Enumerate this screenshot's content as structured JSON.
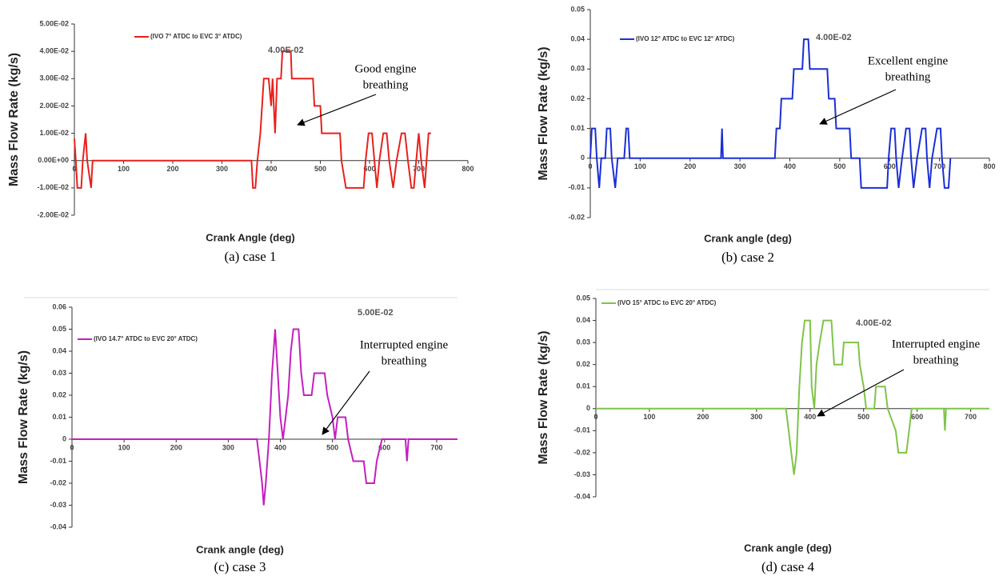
{
  "chart_data": [
    {
      "type": "line",
      "caption": "(a) case 1",
      "x_label": "Crank Angle (deg)",
      "y_label": "Mass Flow Rate (kg/s)",
      "peak_label": "4.00E-02",
      "annotation": [
        "Good engine",
        "breathing"
      ],
      "xlim": [
        0,
        800
      ],
      "xticks": [
        0,
        100,
        200,
        300,
        400,
        500,
        600,
        700,
        800
      ],
      "ylim": [
        -0.02,
        0.05
      ],
      "yticks": [
        {
          "value": -0.02,
          "label": "-2.00E-02"
        },
        {
          "value": -0.01,
          "label": "-1.00E-02"
        },
        {
          "value": 0,
          "label": "0.00E+00"
        },
        {
          "value": 0.01,
          "label": "1.00E-02"
        },
        {
          "value": 0.02,
          "label": "2.00E-02"
        },
        {
          "value": 0.03,
          "label": "3.00E-02"
        },
        {
          "value": 0.04,
          "label": "4.00E-02"
        },
        {
          "value": 0.05,
          "label": "5.00E-02"
        }
      ],
      "x": [
        0,
        3,
        6,
        14,
        17,
        23,
        26,
        34,
        37,
        360,
        363,
        368,
        372,
        378,
        385,
        395,
        400,
        403,
        408,
        412,
        420,
        423,
        440,
        442,
        485,
        488,
        500,
        503,
        540,
        543,
        552,
        588,
        592,
        598,
        605,
        610,
        615,
        620,
        628,
        635,
        640,
        648,
        655,
        665,
        672,
        678,
        685,
        690,
        695,
        700,
        705,
        712,
        716,
        720,
        725
      ],
      "series": [
        {
          "name": "(IVO 7° ATDC to EVC 3° ATDC)",
          "color": "#e8211c",
          "values": [
            0.008,
            0,
            -0.01,
            -0.01,
            0,
            0.01,
            0,
            -0.01,
            0,
            0,
            -0.01,
            -0.01,
            0,
            0.01,
            0.03,
            0.03,
            0.02,
            0.03,
            0.01,
            0.03,
            0.03,
            0.04,
            0.04,
            0.03,
            0.03,
            0.02,
            0.02,
            0.01,
            0.01,
            0,
            -0.01,
            -0.01,
            0,
            0.01,
            0.01,
            0,
            -0.01,
            0,
            0.01,
            0.01,
            0,
            -0.01,
            0,
            0.01,
            0.01,
            0,
            -0.01,
            -0.01,
            0,
            0.01,
            0,
            -0.01,
            0,
            0.01,
            0.01
          ]
        }
      ]
    },
    {
      "type": "line",
      "caption": "(b) case 2",
      "x_label": "Crank angle (deg)",
      "y_label": "Mass Flow Rate (kg/s)",
      "peak_label": "4.00E-02",
      "annotation": [
        "Excellent engine",
        "breathing"
      ],
      "xlim": [
        0,
        800
      ],
      "xticks": [
        0,
        100,
        200,
        300,
        400,
        500,
        600,
        700,
        800
      ],
      "ylim": [
        -0.02,
        0.05
      ],
      "yticks": [
        -0.02,
        -0.01,
        0,
        0.01,
        0.02,
        0.03,
        0.04,
        0.05
      ],
      "x": [
        0,
        3,
        10,
        13,
        18,
        22,
        30,
        33,
        40,
        43,
        50,
        55,
        68,
        72,
        76,
        79,
        262,
        264,
        266,
        370,
        373,
        380,
        383,
        405,
        408,
        425,
        428,
        437,
        440,
        475,
        478,
        490,
        493,
        520,
        523,
        540,
        543,
        595,
        598,
        603,
        610,
        613,
        618,
        625,
        633,
        640,
        643,
        648,
        655,
        665,
        672,
        675,
        680,
        685,
        695,
        702,
        705,
        710,
        718,
        722
      ],
      "series": [
        {
          "name": "(IVO 12° ATDC to EVC 12° ATDC)",
          "color": "#1a2fd6",
          "values": [
            0,
            0.01,
            0.01,
            0,
            -0.01,
            0,
            0,
            0.01,
            0.01,
            0,
            -0.01,
            0,
            0,
            0.01,
            0.01,
            0,
            0,
            0.01,
            0,
            0,
            0.01,
            0.01,
            0.02,
            0.02,
            0.03,
            0.03,
            0.04,
            0.04,
            0.03,
            0.03,
            0.02,
            0.02,
            0.01,
            0.01,
            0,
            0,
            -0.01,
            -0.01,
            0,
            0.01,
            0.01,
            0,
            -0.01,
            0,
            0.01,
            0.01,
            0,
            -0.01,
            0,
            0.01,
            0.01,
            0,
            -0.01,
            0,
            0.01,
            0.01,
            0,
            -0.01,
            -0.01,
            0
          ]
        }
      ]
    },
    {
      "type": "line",
      "caption": "(c) case 3",
      "x_label": "Crank angle (deg)",
      "y_label": "Mass Flow Rate (kg/s)",
      "peak_label": "5.00E-02",
      "annotation": [
        "Interrupted engine",
        "breathing"
      ],
      "xlim": [
        0,
        740
      ],
      "xticks": [
        0,
        100,
        200,
        300,
        400,
        500,
        600,
        700
      ],
      "ylim": [
        -0.04,
        0.06
      ],
      "yticks": [
        -0.04,
        -0.03,
        -0.02,
        -0.01,
        0,
        0.01,
        0.02,
        0.03,
        0.04,
        0.05,
        0.06
      ],
      "x": [
        0,
        355,
        360,
        365,
        368,
        372,
        378,
        384,
        390,
        395,
        400,
        405,
        410,
        415,
        420,
        425,
        435,
        440,
        445,
        460,
        465,
        485,
        490,
        500,
        505,
        510,
        525,
        530,
        540,
        560,
        565,
        580,
        585,
        595,
        640,
        643,
        646,
        740
      ],
      "series": [
        {
          "name": "(IVO 14.7° ATDC to EVC 20° ATDC)",
          "color": "#c41fbf",
          "values": [
            0,
            0,
            -0.01,
            -0.02,
            -0.03,
            -0.02,
            0,
            0.03,
            0.05,
            0.03,
            0.01,
            0,
            0.01,
            0.02,
            0.04,
            0.05,
            0.05,
            0.03,
            0.02,
            0.02,
            0.03,
            0.03,
            0.02,
            0.01,
            0,
            0.01,
            0.01,
            0,
            -0.01,
            -0.01,
            -0.02,
            -0.02,
            -0.01,
            0,
            0,
            -0.01,
            0,
            0
          ]
        }
      ]
    },
    {
      "type": "line",
      "caption": "(d) case 4",
      "x_label": "Crank angle (deg)",
      "y_label": "Mass Flow Rate (kg/s)",
      "peak_label": "4.00E-02",
      "annotation": [
        "Interrupted engine",
        "breathing"
      ],
      "xlim": [
        0,
        735
      ],
      "xticks": [
        0,
        100,
        200,
        300,
        400,
        500,
        600,
        700
      ],
      "ylim": [
        -0.04,
        0.05
      ],
      "yticks": [
        -0.04,
        -0.03,
        -0.02,
        -0.01,
        0,
        0.01,
        0.02,
        0.03,
        0.04,
        0.05
      ],
      "x": [
        0,
        355,
        360,
        365,
        370,
        375,
        380,
        385,
        390,
        400,
        403,
        408,
        412,
        418,
        425,
        440,
        445,
        460,
        463,
        490,
        493,
        500,
        505,
        520,
        523,
        540,
        545,
        560,
        565,
        580,
        585,
        590,
        650,
        652,
        654,
        735
      ],
      "series": [
        {
          "name": "(IVO 15° ATDC to EVC 20° ATDC)",
          "color": "#7fc34a",
          "values": [
            0,
            0,
            -0.01,
            -0.02,
            -0.03,
            -0.02,
            0.01,
            0.03,
            0.04,
            0.04,
            0.01,
            0,
            0.02,
            0.03,
            0.04,
            0.04,
            0.02,
            0.02,
            0.03,
            0.03,
            0.02,
            0.01,
            0,
            0,
            0.01,
            0.01,
            0,
            -0.01,
            -0.02,
            -0.02,
            -0.01,
            0,
            0,
            -0.01,
            0,
            0
          ]
        }
      ]
    }
  ]
}
